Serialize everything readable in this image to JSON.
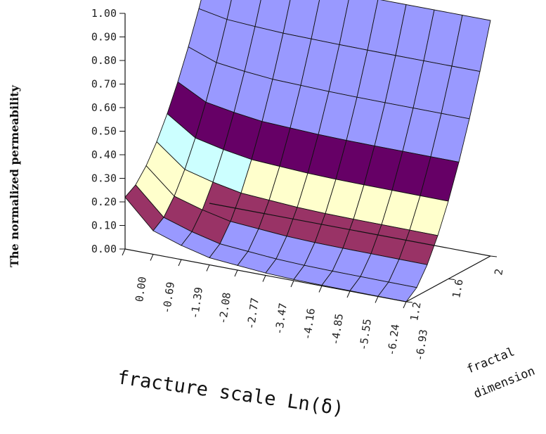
{
  "chart_data": {
    "type": "surface",
    "title": "",
    "ylabel": "The normalized permeability",
    "xlabel": "fracture scale Ln(δ)",
    "zlabel_lines": [
      "fractal",
      "dimension"
    ],
    "y_ticks": [
      "0.00",
      "0.10",
      "0.20",
      "0.30",
      "0.40",
      "0.50",
      "0.60",
      "0.70",
      "0.80",
      "0.90",
      "1.00"
    ],
    "x_ticks": [
      "0.00",
      "-0.69",
      "-1.39",
      "-2.08",
      "-2.77",
      "-3.47",
      "-4.16",
      "-4.85",
      "-5.55",
      "-6.24",
      "-6.93"
    ],
    "z_ticks": [
      "1.2",
      "1.6",
      "2"
    ],
    "ylim": [
      0,
      1
    ],
    "fractal_dimension_range": [
      1.2,
      2.0
    ],
    "surface_values_front_edge_fd_1_2": [
      0.22,
      0.1,
      0.06,
      0.03,
      0.02,
      0.01,
      0.005,
      0.003,
      0.002,
      0.001,
      0.0
    ],
    "surface_values_back_edge_fd_2_0": [
      1.0,
      1.0,
      1.0,
      1.0,
      1.0,
      1.0,
      1.0,
      1.0,
      1.0,
      1.0,
      1.0
    ],
    "color_bands": [
      {
        "range": [
          0.0,
          0.1
        ],
        "color": "#9999ff"
      },
      {
        "range": [
          0.1,
          0.2
        ],
        "color": "#993366"
      },
      {
        "range": [
          0.2,
          0.3
        ],
        "color": "#ffffcc"
      },
      {
        "range": [
          0.3,
          0.4
        ],
        "color": "#ccffff"
      },
      {
        "range": [
          0.4,
          0.5
        ],
        "color": "#660066"
      },
      {
        "range": [
          0.5,
          1.0
        ],
        "color": "#9999ff"
      }
    ],
    "grid_line_color": "#111111"
  }
}
